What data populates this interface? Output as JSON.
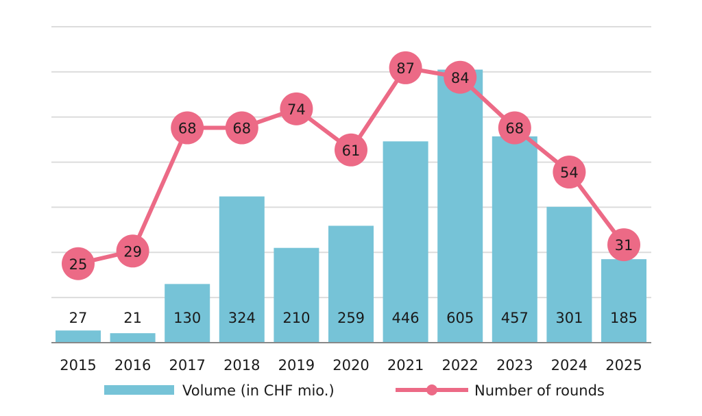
{
  "chart_data": {
    "type": "bar+line",
    "categories": [
      "2015",
      "2016",
      "2017",
      "2018",
      "2019",
      "2020",
      "2021",
      "2022",
      "2023",
      "2024",
      "2025"
    ],
    "series": [
      {
        "name": "Volume (in CHF mio.)",
        "type": "bar",
        "axis": "left",
        "values": [
          27,
          21,
          130,
          324,
          210,
          259,
          446,
          605,
          457,
          301,
          185
        ],
        "color": "#76C3D7"
      },
      {
        "name": "Number of rounds",
        "type": "line",
        "axis": "right",
        "values": [
          25,
          29,
          68,
          68,
          74,
          61,
          87,
          84,
          68,
          54,
          31
        ],
        "color": "#EC6A86"
      }
    ],
    "ylim_left": [
      0,
      700
    ],
    "ylim_right": [
      0,
      100
    ],
    "y_axes_visible": false,
    "grid": true,
    "legend_position": "bottom",
    "xlabel": "",
    "ylabel": ""
  }
}
